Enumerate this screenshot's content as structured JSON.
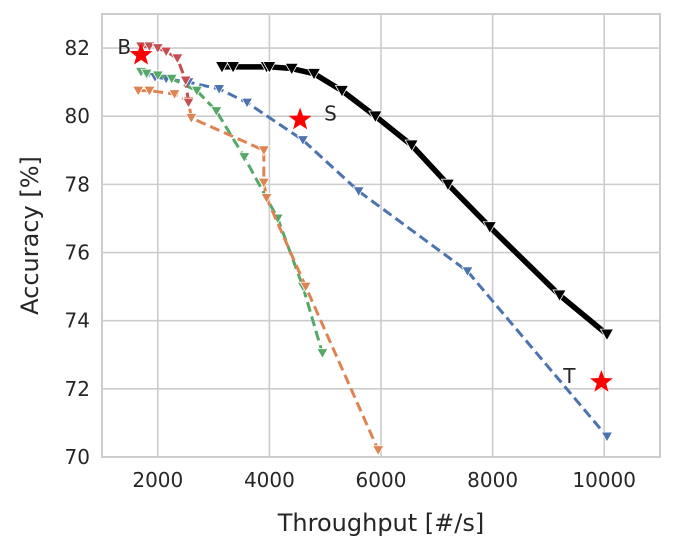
{
  "chart_data": {
    "type": "line",
    "xlabel": "Throughput [#/s]",
    "ylabel": "Accuracy [%]",
    "xlim": [
      1000,
      11000
    ],
    "ylim": [
      70,
      83
    ],
    "xticks": [
      2000,
      4000,
      6000,
      8000,
      10000
    ],
    "yticks": [
      70,
      72,
      74,
      76,
      78,
      80,
      82
    ],
    "grid": true,
    "legend": "none",
    "series": [
      {
        "color": "#000000",
        "style": "solid",
        "marker": "triangle-down",
        "x": [
          3150,
          3350,
          3950,
          4000,
          4400,
          4800,
          5300,
          5900,
          6550,
          7200,
          7950,
          9200,
          10050
        ],
        "y": [
          81.45,
          81.45,
          81.45,
          81.45,
          81.4,
          81.25,
          80.75,
          80.0,
          79.15,
          78.0,
          76.75,
          74.75,
          73.6
        ]
      },
      {
        "color": "#4c72b0",
        "style": "dashed",
        "marker": "triangle-down",
        "x": [
          1700,
          1800,
          1950,
          2150,
          2550,
          3100,
          3600,
          4600,
          5600,
          7550,
          10050
        ],
        "y": [
          81.3,
          81.2,
          81.15,
          81.1,
          81.0,
          80.8,
          80.4,
          79.3,
          77.8,
          75.45,
          70.6
        ]
      },
      {
        "color": "#55a868",
        "style": "dashed",
        "marker": "triangle-down",
        "x": [
          1700,
          1800,
          2000,
          2250,
          2700,
          3050,
          3550,
          4150,
          4600,
          4950
        ],
        "y": [
          81.3,
          81.25,
          81.2,
          81.1,
          80.75,
          80.15,
          78.8,
          77.0,
          75.0,
          73.05
        ]
      },
      {
        "color": "#dd8452",
        "style": "dashed",
        "marker": "triangle-down",
        "x": [
          1650,
          1850,
          2300,
          2550,
          2600,
          3900,
          3900,
          3950,
          4650,
          5950
        ],
        "y": [
          80.75,
          80.75,
          80.65,
          80.45,
          79.95,
          79.0,
          78.05,
          77.6,
          75.0,
          70.2
        ]
      },
      {
        "color": "#c44e52",
        "style": "dashed",
        "marker": "triangle-down",
        "x": [
          1700,
          1850,
          2000,
          2150,
          2350,
          2500,
          2550
        ],
        "y": [
          82.05,
          82.05,
          82.0,
          81.9,
          81.7,
          81.05,
          80.4
        ]
      }
    ],
    "annotations": [
      {
        "label": "B",
        "x": 1700,
        "y": 81.8,
        "marker": "star",
        "color": "#ff0000"
      },
      {
        "label": "S",
        "x": 4550,
        "y": 79.9,
        "marker": "star",
        "color": "#ff0000"
      },
      {
        "label": "T",
        "x": 9950,
        "y": 72.2,
        "marker": "star",
        "color": "#ff0000"
      }
    ]
  }
}
